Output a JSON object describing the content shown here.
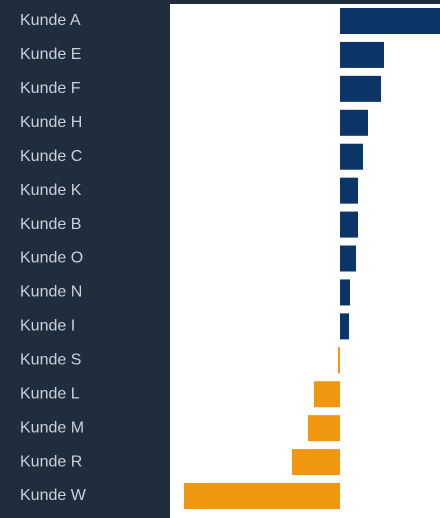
{
  "chart_data": {
    "type": "barh",
    "categories": [
      "Kunde A",
      "Kunde E",
      "Kunde F",
      "Kunde H",
      "Kunde C",
      "Kunde K",
      "Kunde B",
      "Kunde O",
      "Kunde N",
      "Kunde I",
      "Kunde S",
      "Kunde L",
      "Kunde M",
      "Kunde R",
      "Kunde W"
    ],
    "values": [
      100,
      44,
      41,
      28,
      23,
      18,
      18,
      16,
      10,
      9,
      -2,
      -26,
      -32,
      -48,
      -156
    ],
    "color": "#0b3467",
    "negative_color": "#f0960f",
    "xlim": [
      -170,
      100
    ]
  }
}
